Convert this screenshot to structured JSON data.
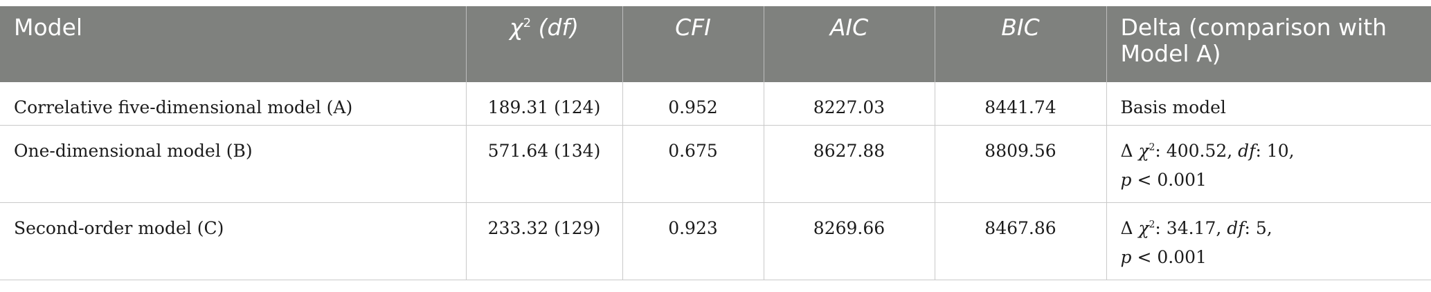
{
  "table": {
    "headers": {
      "model": "Model",
      "chi_symbol": "χ",
      "chi_sup": "2",
      "chi_df": "(df)",
      "cfi": "CFI",
      "aic": "AIC",
      "bic": "BIC",
      "delta": "Delta (comparison with Model A)"
    },
    "rows": [
      {
        "model": "Correlative five-dimensional model (A)",
        "chi": "189.31 (124)",
        "cfi": "0.952",
        "aic": "8227.03",
        "bic": "8441.74",
        "delta_text": "Basis model"
      },
      {
        "model": "One-dimensional model (B)",
        "chi": "571.64 (134)",
        "cfi": "0.675",
        "aic": "8627.88",
        "bic": "8809.56",
        "delta_prefix": "Δ",
        "delta_chi": "χ",
        "delta_sup": "2",
        "delta_val": ": 400.52, ",
        "delta_df": "df",
        "delta_df_val": ": 10,",
        "delta_p": "p",
        "delta_p_val": " < 0.001"
      },
      {
        "model": "Second-order model (C)",
        "chi": "233.32 (129)",
        "cfi": "0.923",
        "aic": "8269.66",
        "bic": "8467.86",
        "delta_prefix": "Δ",
        "delta_chi": "χ",
        "delta_sup": "2",
        "delta_val": ": 34.17, ",
        "delta_df": "df",
        "delta_df_val": ": 5,",
        "delta_p": "p",
        "delta_p_val": " < 0.001"
      }
    ]
  }
}
